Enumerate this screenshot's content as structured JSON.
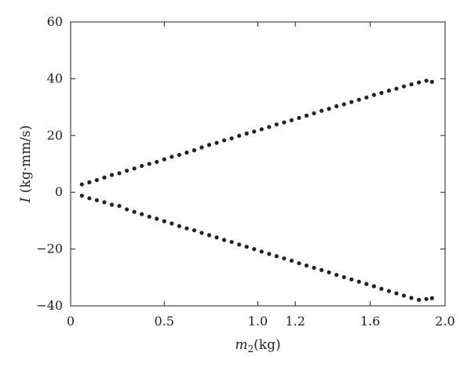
{
  "chart_data": {
    "type": "scatter",
    "xlabel": "m2(kg)",
    "xlabel_main": "m",
    "xlabel_sub": "2",
    "xlabel_unit": "(kg)",
    "ylabel": "I (kg·mm/s)",
    "ylabel_main": "I",
    "ylabel_unit": " (kg·mm/s)",
    "xlim": [
      0,
      2.0
    ],
    "ylim": [
      -40,
      60
    ],
    "x_ticks": [
      0,
      0.5,
      1.0,
      1.2,
      1.6,
      2.0
    ],
    "x_tick_labels": [
      "0",
      "0.5",
      "1.0",
      "1.2",
      "1.6",
      "2.0"
    ],
    "y_ticks": [
      -40,
      -20,
      0,
      20,
      40,
      60
    ],
    "y_tick_labels": [
      "−40",
      "−20",
      "0",
      "20",
      "40",
      "60"
    ],
    "grid": false,
    "marker_color": "#222222",
    "series": [
      {
        "x": [
          0.06,
          0.1,
          0.14,
          0.18,
          0.22,
          0.26,
          0.3,
          0.34,
          0.38,
          0.42,
          0.46,
          0.5,
          0.54,
          0.58,
          0.62,
          0.66,
          0.7,
          0.74,
          0.78,
          0.82,
          0.86,
          0.9,
          0.94,
          0.98,
          1.02,
          1.06,
          1.1,
          1.14,
          1.18,
          1.22,
          1.26,
          1.3,
          1.34,
          1.38,
          1.42,
          1.46,
          1.5,
          1.54,
          1.58,
          1.62,
          1.66,
          1.7,
          1.74,
          1.78,
          1.82,
          1.86,
          1.9,
          1.93
        ],
        "y": [
          2.8,
          3.5,
          4.3,
          5.2,
          6.1,
          6.7,
          7.6,
          8.4,
          9.3,
          10.0,
          10.7,
          11.6,
          12.5,
          13.2,
          14.0,
          14.8,
          15.8,
          16.7,
          17.4,
          18.3,
          19.0,
          19.9,
          20.7,
          21.4,
          22.2,
          23.0,
          23.9,
          24.6,
          25.4,
          26.2,
          27.0,
          27.8,
          28.7,
          29.4,
          30.3,
          31.0,
          31.8,
          32.6,
          33.4,
          34.3,
          35.0,
          35.8,
          36.5,
          37.3,
          38.0,
          38.7,
          39.3,
          38.9
        ]
      },
      {
        "x": [
          0.06,
          0.1,
          0.14,
          0.18,
          0.22,
          0.26,
          0.3,
          0.34,
          0.38,
          0.42,
          0.46,
          0.5,
          0.54,
          0.58,
          0.62,
          0.66,
          0.7,
          0.74,
          0.78,
          0.82,
          0.86,
          0.9,
          0.94,
          0.98,
          1.02,
          1.06,
          1.1,
          1.14,
          1.18,
          1.22,
          1.26,
          1.3,
          1.34,
          1.38,
          1.42,
          1.46,
          1.5,
          1.54,
          1.58,
          1.62,
          1.66,
          1.7,
          1.74,
          1.78,
          1.82,
          1.86,
          1.9,
          1.93
        ],
        "y": [
          -1.2,
          -2.1,
          -2.8,
          -3.5,
          -4.4,
          -4.8,
          -6.0,
          -6.9,
          -7.7,
          -8.6,
          -9.3,
          -10.2,
          -11.0,
          -11.9,
          -12.7,
          -13.4,
          -14.3,
          -15.1,
          -15.9,
          -16.8,
          -17.5,
          -18.4,
          -19.2,
          -20.0,
          -20.9,
          -21.7,
          -22.5,
          -23.3,
          -24.1,
          -25.0,
          -25.8,
          -26.6,
          -27.4,
          -28.2,
          -29.1,
          -29.9,
          -30.7,
          -31.5,
          -32.3,
          -33.1,
          -34.0,
          -34.8,
          -35.6,
          -36.4,
          -37.2,
          -37.9,
          -37.6,
          -37.3
        ]
      }
    ]
  }
}
